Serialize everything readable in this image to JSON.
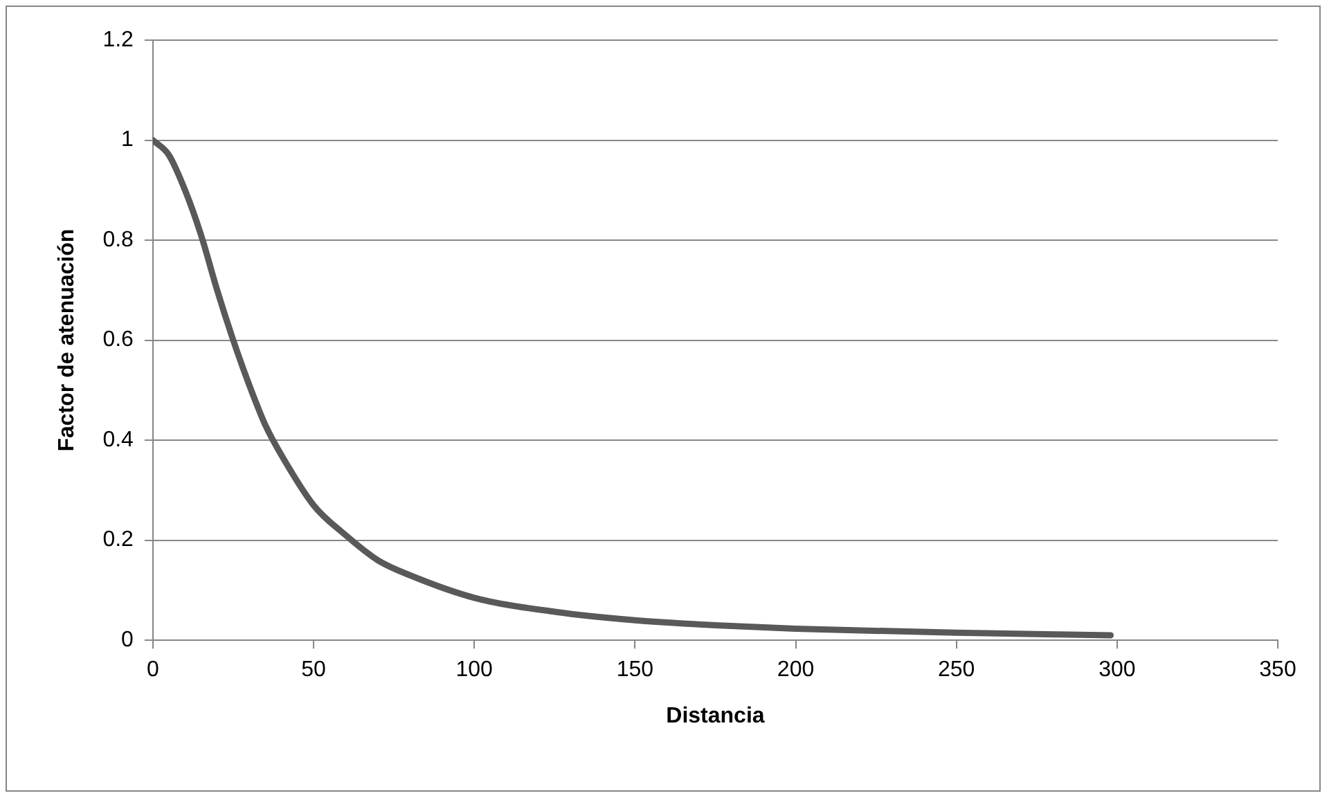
{
  "chart_data": {
    "type": "line",
    "xlabel": "Distancia",
    "ylabel": "Factor de atenuación",
    "xlim": [
      0,
      350
    ],
    "xticks": [
      0,
      50,
      100,
      150,
      200,
      250,
      300,
      350
    ],
    "ylim": [
      0,
      1.2
    ],
    "yticks": [
      0,
      0.2,
      0.4,
      0.6,
      0.8,
      1,
      1.2
    ],
    "grid": "y",
    "legend": false,
    "marker": "none",
    "line_style": "solid",
    "series": [
      {
        "color": "#595959",
        "x": [
          0,
          5,
          10,
          15,
          20,
          25,
          30,
          35,
          40,
          50,
          60,
          70,
          80,
          100,
          125,
          150,
          175,
          200,
          250,
          298
        ],
        "values": [
          1.0,
          0.97,
          0.9,
          0.81,
          0.7,
          0.6,
          0.51,
          0.43,
          0.37,
          0.27,
          0.21,
          0.16,
          0.13,
          0.085,
          0.057,
          0.04,
          0.03,
          0.023,
          0.015,
          0.01
        ]
      }
    ]
  }
}
